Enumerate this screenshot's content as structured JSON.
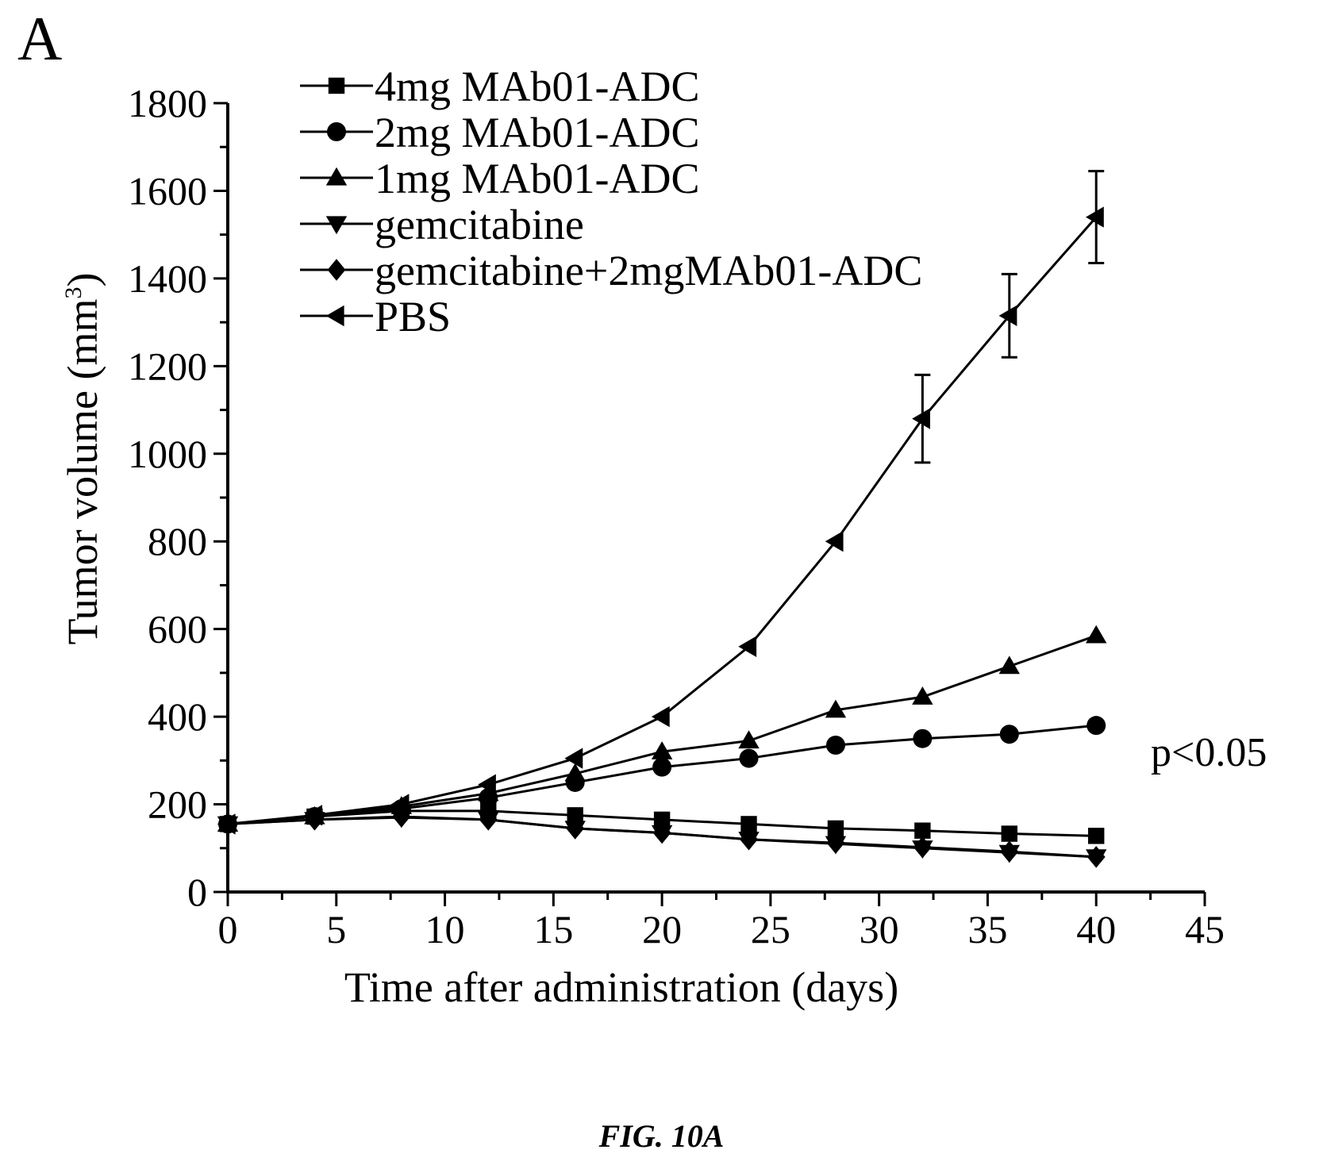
{
  "panel_label": "A",
  "figure_caption": "FIG. 10A",
  "annotation": "p<0.05",
  "chart_data": {
    "type": "line",
    "title": "",
    "xlabel": "Time after administration (days)",
    "ylabel": "Tumor volume (mm",
    "ylabel_superscript": "3",
    "ylabel_suffix": ")",
    "xlim": [
      0,
      45
    ],
    "ylim": [
      0,
      1800
    ],
    "xticks": [
      0,
      5,
      10,
      15,
      20,
      25,
      30,
      35,
      40,
      45
    ],
    "yticks": [
      0,
      200,
      400,
      600,
      800,
      1000,
      1200,
      1400,
      1600,
      1800
    ],
    "grid": false,
    "legend_position": "top-left",
    "x": [
      0,
      4,
      8,
      12,
      16,
      20,
      24,
      28,
      32,
      36,
      40
    ],
    "series": [
      {
        "name": "4mg MAb01-ADC",
        "marker": "square",
        "values": [
          155,
          172,
          185,
          185,
          175,
          165,
          155,
          145,
          140,
          133,
          128
        ]
      },
      {
        "name": "2mg MAb01-ADC",
        "marker": "circle",
        "values": [
          155,
          172,
          190,
          215,
          250,
          285,
          305,
          335,
          350,
          360,
          380
        ]
      },
      {
        "name": "1mg MAb01-ADC",
        "marker": "triangle-up",
        "values": [
          155,
          172,
          195,
          225,
          270,
          320,
          345,
          415,
          445,
          515,
          585
        ]
      },
      {
        "name": "gemcitabine",
        "marker": "triangle-down",
        "values": [
          155,
          165,
          170,
          165,
          145,
          135,
          120,
          110,
          100,
          90,
          80
        ]
      },
      {
        "name": "gemcitabine+2mgMAb01-ADC",
        "marker": "diamond",
        "values": [
          155,
          165,
          172,
          165,
          145,
          135,
          120,
          112,
          102,
          92,
          80
        ]
      },
      {
        "name": "PBS",
        "marker": "triangle-left",
        "values": [
          155,
          175,
          200,
          245,
          305,
          400,
          560,
          800,
          1080,
          1315,
          1540
        ],
        "error": [
          0,
          0,
          0,
          0,
          0,
          0,
          0,
          0,
          100,
          95,
          105
        ]
      }
    ]
  }
}
